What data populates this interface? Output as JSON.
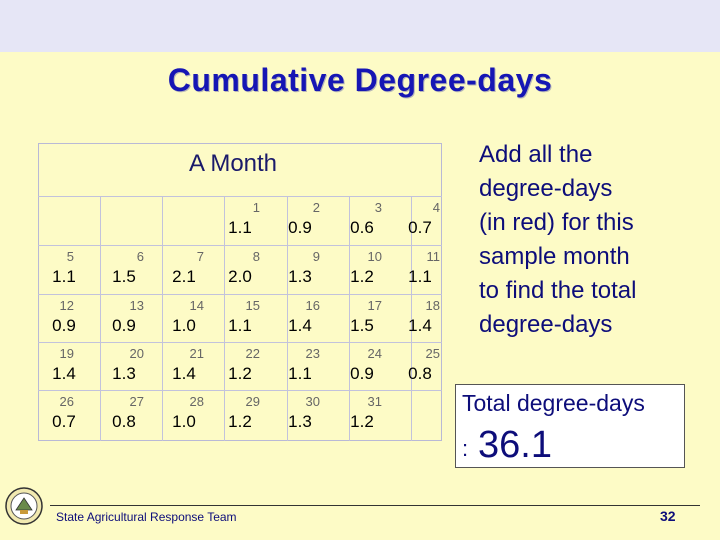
{
  "title": "Cumulative Degree-days",
  "calendar": {
    "title": "A Month",
    "days": [
      {
        "day": "1",
        "value": "1.1"
      },
      {
        "day": "2",
        "value": "0.9"
      },
      {
        "day": "3",
        "value": "0.6"
      },
      {
        "day": "4",
        "value": "0.7"
      },
      {
        "day": "5",
        "value": "1.1"
      },
      {
        "day": "6",
        "value": "1.5"
      },
      {
        "day": "7",
        "value": "2.1"
      },
      {
        "day": "8",
        "value": "2.0"
      },
      {
        "day": "9",
        "value": "1.3"
      },
      {
        "day": "10",
        "value": "1.2"
      },
      {
        "day": "11",
        "value": "1.1"
      },
      {
        "day": "12",
        "value": "0.9"
      },
      {
        "day": "13",
        "value": "0.9"
      },
      {
        "day": "14",
        "value": "1.0"
      },
      {
        "day": "15",
        "value": "1.1"
      },
      {
        "day": "16",
        "value": "1.4"
      },
      {
        "day": "17",
        "value": "1.5"
      },
      {
        "day": "18",
        "value": "1.4"
      },
      {
        "day": "19",
        "value": "1.4"
      },
      {
        "day": "20",
        "value": "1.3"
      },
      {
        "day": "21",
        "value": "1.4"
      },
      {
        "day": "22",
        "value": "1.2"
      },
      {
        "day": "23",
        "value": "1.1"
      },
      {
        "day": "24",
        "value": "0.9"
      },
      {
        "day": "25",
        "value": "0.8"
      },
      {
        "day": "26",
        "value": "0.7"
      },
      {
        "day": "27",
        "value": "0.8"
      },
      {
        "day": "28",
        "value": "1.0"
      },
      {
        "day": "29",
        "value": "1.2"
      },
      {
        "day": "30",
        "value": "1.3"
      },
      {
        "day": "31",
        "value": "1.2"
      }
    ]
  },
  "instructions": [
    "Add all the",
    "degree-days",
    "(in red) for this",
    "sample month",
    "to find the total",
    "degree-days"
  ],
  "total": {
    "label": "Total degree-days",
    "colon": ":",
    "value": "36.1"
  },
  "footer": {
    "text": "State Agricultural Response Team",
    "page": "32"
  },
  "icons": {
    "seal": "state-seal-icon"
  }
}
